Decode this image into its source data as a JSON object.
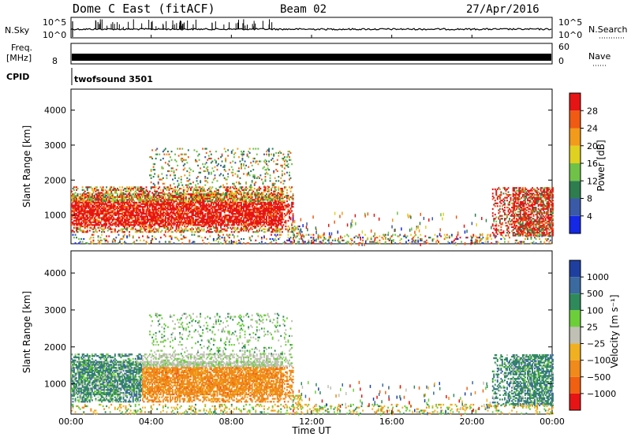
{
  "header": {
    "title": "Dome C East (fitACF)",
    "beam": "Beam 02",
    "date": "27/Apr/2016"
  },
  "top_panels": {
    "nsky_label": "N.Sky",
    "nsearch_label": "N.Search",
    "nsky_ticks": [
      "10^5",
      "10^0"
    ],
    "nsearch_ticks": [
      "10^5",
      "10^0"
    ],
    "freq_label": "Freq.",
    "freq_unit": "[MHz]",
    "freq_tick": "8",
    "nave_label": "Nave",
    "nave_ticks": [
      "60",
      "0"
    ],
    "cpid_label": "CPID",
    "cpid_value": "twofsound 3501"
  },
  "panels": {
    "power": {
      "ylabel": "Slant Range [km]",
      "cbar_label": "Power [dB]"
    },
    "velocity": {
      "ylabel": "Slant Range [km]",
      "cbar_label": "Velocity [m s⁻¹]"
    }
  },
  "xlabel": "Time UT",
  "chart_data": {
    "type": "heatmap",
    "x_ticks": [
      "00:00",
      "04:00",
      "08:00",
      "12:00",
      "16:00",
      "20:00",
      "00:00"
    ],
    "x_range_hours": [
      0,
      24
    ],
    "y_ticks": [
      "1000",
      "2000",
      "3000",
      "4000"
    ],
    "y_range_km": [
      180,
      4600
    ],
    "power_scale": {
      "labels": [
        "4",
        "8",
        "12",
        "16",
        "20",
        "24",
        "28"
      ],
      "colors": [
        "#1428e6",
        "#3a5aa8",
        "#2e7d4f",
        "#6fc247",
        "#e0d020",
        "#f29a1a",
        "#f05a12",
        "#e61414"
      ]
    },
    "velocity_scale": {
      "labels": [
        "1000",
        "500",
        "100",
        "25",
        "−25",
        "−100",
        "−500",
        "−1000"
      ],
      "colors": [
        "#1f3fa0",
        "#3a6aa0",
        "#2e8a5a",
        "#6ccf3a",
        "#c0c0b4",
        "#f0b020",
        "#f08a1a",
        "#f06010",
        "#e61414"
      ]
    },
    "echo_regions": [
      {
        "t0": 0.0,
        "t1": 11.1,
        "r0": 500,
        "r1": 1800,
        "note": "main band 00:00-11:00"
      },
      {
        "t0": 3.9,
        "t1": 11.0,
        "r0": 1800,
        "r1": 2900,
        "note": "upper echoes"
      },
      {
        "t0": 11.0,
        "t1": 11.5,
        "r0": 300,
        "r1": 700,
        "note": "lower band near 11:00"
      },
      {
        "t0": 21.0,
        "t1": 24.0,
        "r0": 400,
        "r1": 1800,
        "note": "evening band"
      },
      {
        "t0": 0.0,
        "t1": 24.0,
        "r0": 180,
        "r1": 450,
        "note": "near-range scatter"
      }
    ],
    "power_dominant": "28+ dB in main band",
    "velocity_dominant": "-100 to -500 m/s in main band"
  }
}
